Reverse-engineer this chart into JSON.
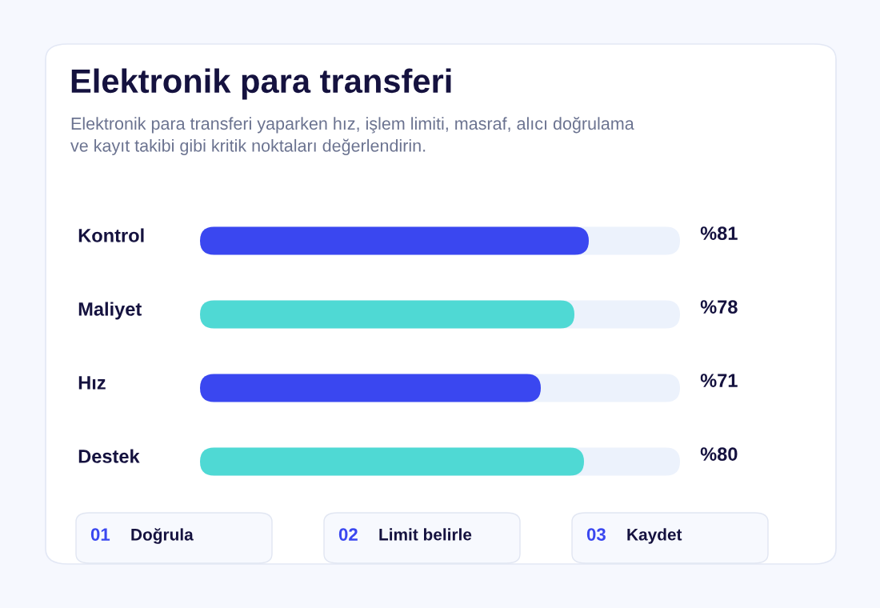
{
  "chart_data": {
    "type": "bar",
    "orientation": "horizontal",
    "title": "Elektronik para transferi",
    "subtitle": "Elektronik para transferi yaparken hız, işlem limiti, masraf, alıcı doğrulama\nve kayıt takibi gibi kritik noktaları değerlendirin.",
    "categories": [
      "Kontrol",
      "Maliyet",
      "Hız",
      "Destek"
    ],
    "values": [
      81,
      78,
      71,
      80
    ],
    "colors": [
      "#3a47f0",
      "#4fd9d4",
      "#3a47f0",
      "#4fd9d4"
    ],
    "value_labels": [
      "%81",
      "%78",
      "%71",
      "%80"
    ],
    "xlim": [
      0,
      100
    ],
    "tick_labels": "y",
    "grid": false,
    "legend": false,
    "annotations": [
      "01",
      "Doğrula",
      "02",
      "Limit belirle",
      "03",
      "Kaydet"
    ]
  }
}
